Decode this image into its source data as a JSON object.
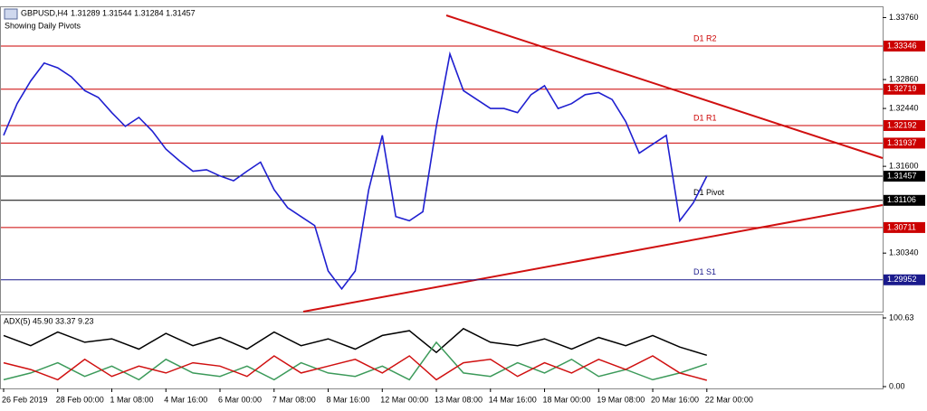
{
  "chart_data": [
    {
      "type": "line",
      "title": "GBPUSD,H4",
      "subtitle": "1.31289 1.31544 1.31284 1.31457",
      "annotation": "Showing Daily Pivots",
      "x": [
        0,
        2,
        4,
        6,
        8,
        10,
        12,
        14,
        16,
        18,
        20,
        22,
        24,
        26,
        28,
        30,
        32,
        34,
        36,
        38,
        40,
        42,
        44,
        46,
        48,
        50,
        52,
        54,
        56,
        58,
        60,
        62,
        64,
        66,
        68,
        70,
        72,
        74,
        76,
        78,
        80,
        82,
        84,
        86,
        88,
        90,
        92,
        94,
        96,
        98,
        100,
        102,
        104
      ],
      "values": [
        1.3205,
        1.3251,
        1.3284,
        1.331,
        1.3303,
        1.329,
        1.327,
        1.326,
        1.3238,
        1.3218,
        1.3231,
        1.3211,
        1.3185,
        1.3168,
        1.3153,
        1.3155,
        1.3146,
        1.3139,
        1.3153,
        1.3166,
        1.3126,
        1.31,
        1.3087,
        1.3074,
        1.3008,
        1.2982,
        1.3008,
        1.3126,
        1.3205,
        1.3087,
        1.3081,
        1.3094,
        1.3218,
        1.3323,
        1.327,
        1.3257,
        1.3244,
        1.3244,
        1.3238,
        1.3264,
        1.3277,
        1.3244,
        1.3251,
        1.3264,
        1.3267,
        1.3257,
        1.3225,
        1.3179,
        1.3192,
        1.3205,
        1.3081,
        1.3107,
        1.31457
      ],
      "color": "#1f1fd0",
      "xlim": [
        0,
        130
      ],
      "ylim": [
        1.2949,
        1.3391
      ],
      "yticks": [
        {
          "value": 1.3376,
          "label": "1.33760"
        },
        {
          "value": 1.3286,
          "label": "1.32860"
        },
        {
          "value": 1.3244,
          "label": "1.32440"
        },
        {
          "value": 1.316,
          "label": "1.31600"
        },
        {
          "value": 1.3034,
          "label": "1.30340"
        }
      ],
      "levels": [
        {
          "value": 1.33346,
          "name": "D1 R2",
          "color": "#cc0000"
        },
        {
          "value": 1.32719,
          "color": "#cc0000"
        },
        {
          "value": 1.32192,
          "name": "D1 R1",
          "color": "#cc0000"
        },
        {
          "value": 1.31937,
          "color": "#cc0000"
        },
        {
          "value": 1.31457,
          "color": "#000000"
        },
        {
          "value": 1.31106,
          "name": "D1 Pivot",
          "color": "#000000"
        },
        {
          "value": 1.30711,
          "color": "#cc0000"
        },
        {
          "value": 1.29952,
          "name": "D1 S1",
          "color": "#1a1a8c"
        }
      ]
    },
    {
      "type": "line",
      "title": "ADX(5) 45.90 33.37 9.23",
      "x": [
        0,
        4,
        8,
        12,
        16,
        20,
        24,
        28,
        32,
        36,
        40,
        44,
        48,
        52,
        56,
        60,
        64,
        68,
        72,
        76,
        80,
        84,
        88,
        92,
        96,
        100,
        104
      ],
      "series": [
        {
          "color": "#000000",
          "values": [
            75,
            60,
            80,
            65,
            70,
            55,
            78,
            60,
            72,
            55,
            80,
            60,
            70,
            55,
            75,
            82,
            50,
            85,
            65,
            60,
            70,
            55,
            72,
            60,
            75,
            58,
            45.9
          ]
        },
        {
          "color": "#3c9a5a",
          "values": [
            10,
            20,
            35,
            15,
            30,
            10,
            40,
            20,
            15,
            30,
            10,
            35,
            20,
            15,
            30,
            10,
            65,
            20,
            15,
            35,
            20,
            40,
            15,
            25,
            10,
            20,
            33.37
          ]
        },
        {
          "color": "#d01010",
          "values": [
            35,
            25,
            10,
            40,
            15,
            30,
            20,
            35,
            30,
            15,
            45,
            20,
            30,
            40,
            20,
            45,
            10,
            35,
            40,
            15,
            35,
            20,
            40,
            25,
            45,
            20,
            9.23
          ]
        }
      ],
      "xlim": [
        0,
        130
      ],
      "ylim": [
        0,
        100.63
      ],
      "yticks": [
        100.63,
        {
          "value": 0,
          "label": "0.00"
        }
      ],
      "xticks": [
        {
          "value": 0,
          "label": "26 Feb 2019"
        },
        {
          "value": 8,
          "label": "28 Feb 00:00"
        },
        {
          "value": 16,
          "label": "1 Mar 08:00"
        },
        {
          "value": 24,
          "label": "4 Mar 16:00"
        },
        {
          "value": 32,
          "label": "6 Mar 00:00"
        },
        {
          "value": 40,
          "label": "7 Mar 08:00"
        },
        {
          "value": 48,
          "label": "8 Mar 16:00"
        },
        {
          "value": 56,
          "label": "12 Mar 00:00"
        },
        {
          "value": 64,
          "label": "13 Mar 08:00"
        },
        {
          "value": 72,
          "label": "14 Mar 16:00"
        },
        {
          "value": 80,
          "label": "18 Mar 00:00"
        },
        {
          "value": 88,
          "label": "19 Mar 08:00"
        },
        {
          "value": 96,
          "label": "20 Mar 16:00"
        },
        {
          "value": 104,
          "label": "22 Mar 00:00"
        }
      ]
    }
  ]
}
